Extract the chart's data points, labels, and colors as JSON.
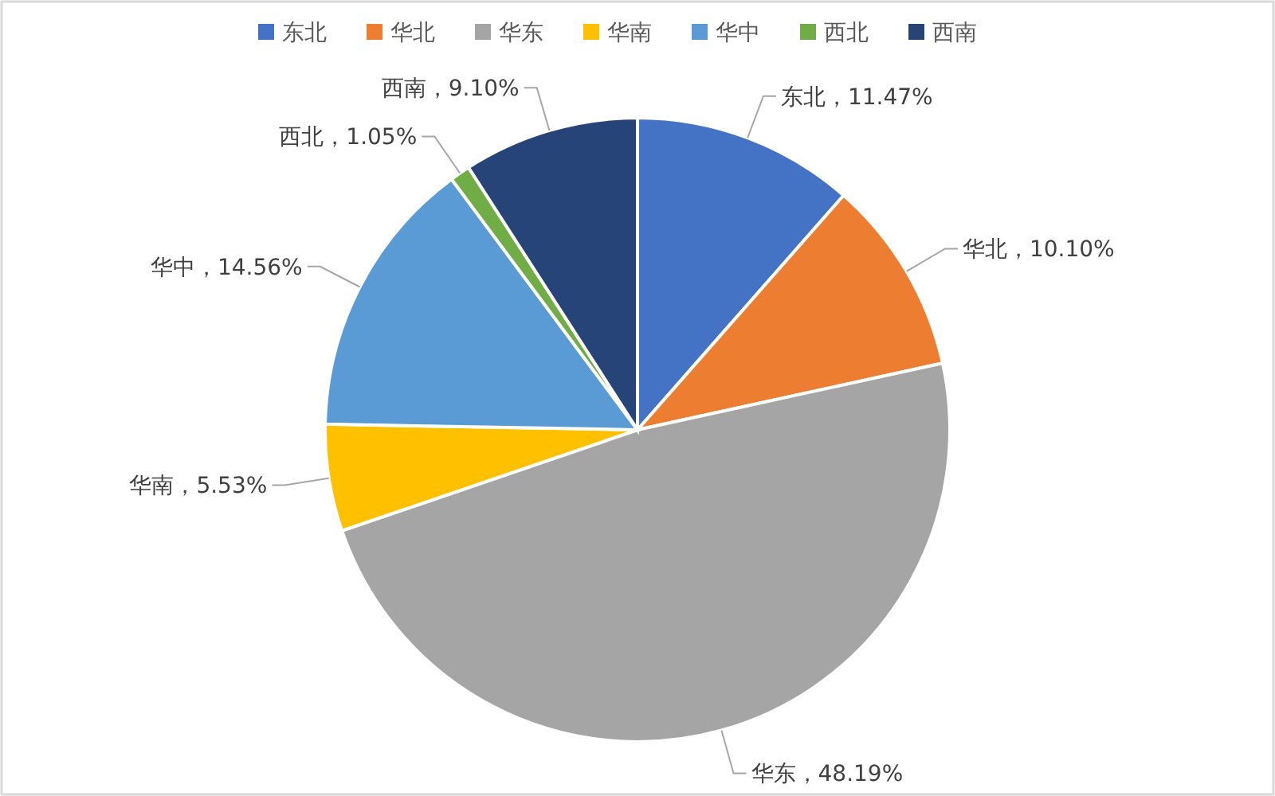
{
  "chart_data": {
    "type": "pie",
    "categories": [
      "东北",
      "华北",
      "华东",
      "华南",
      "华中",
      "西北",
      "西南"
    ],
    "values": [
      11.47,
      10.1,
      48.19,
      5.53,
      14.56,
      1.05,
      9.1
    ],
    "value_labels": [
      "东北，11.47%",
      "华北，10.10%",
      "华东，48.19%",
      "华南，5.53%",
      "华中，14.56%",
      "西北，1.05%",
      "西南，9.10%"
    ],
    "colors": [
      "#4472c4",
      "#ed7d31",
      "#a5a5a5",
      "#ffc000",
      "#5b9bd5",
      "#70ad47",
      "#264478"
    ],
    "legend": "top"
  }
}
